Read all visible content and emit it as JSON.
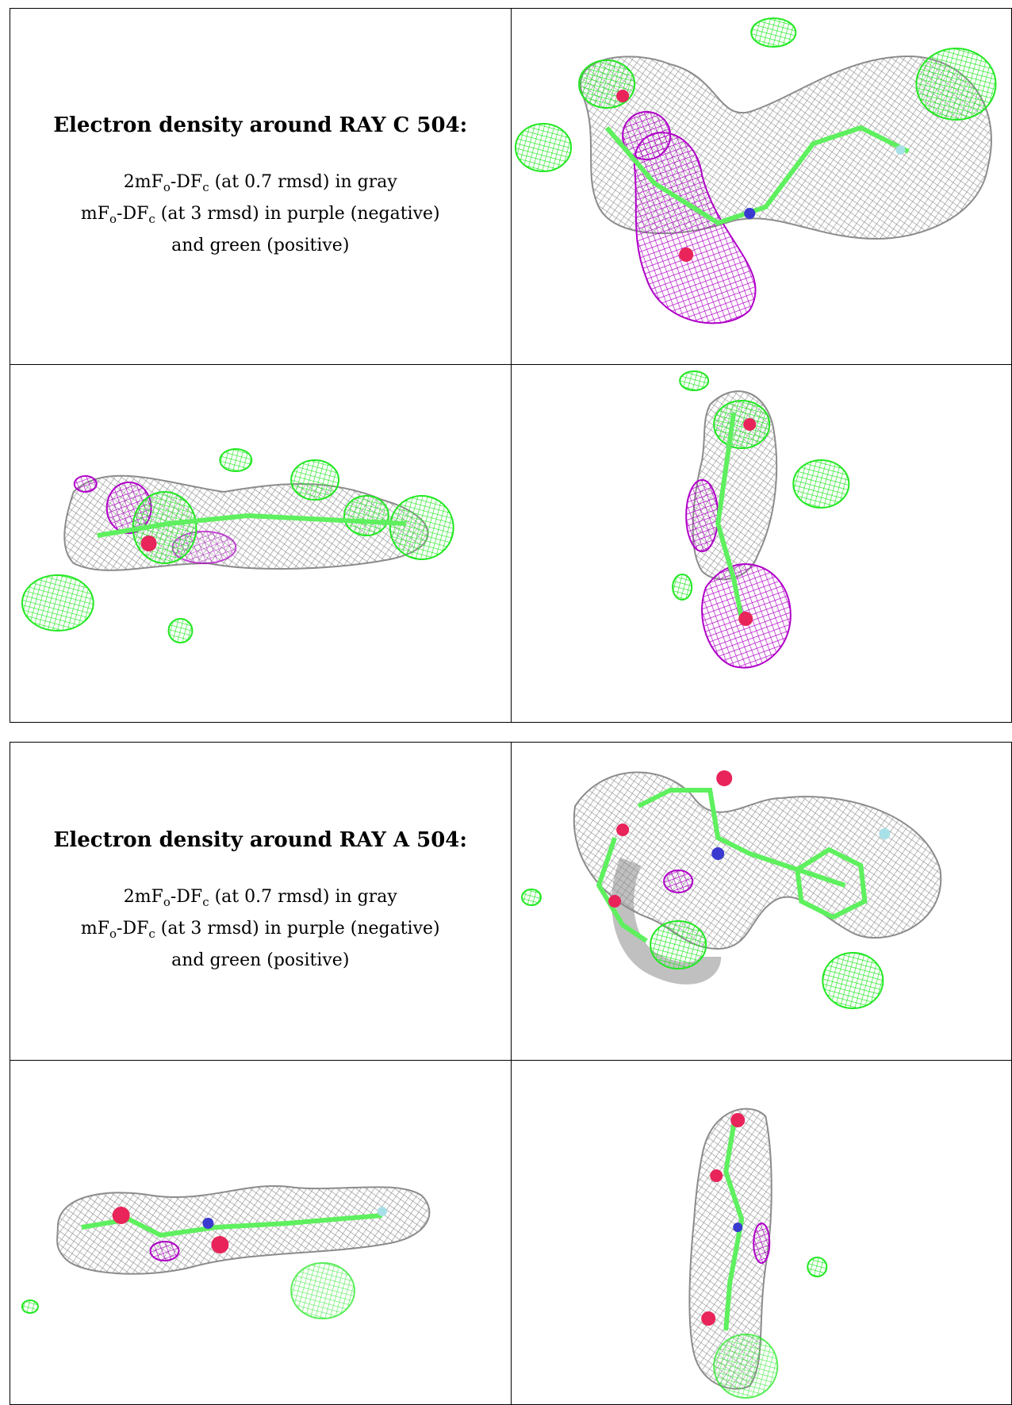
{
  "panels": [
    {
      "heading": "Electron density around RAY C 504:",
      "line1": {
        "pre": "2mF",
        "s1": "o",
        "mid": "-DF",
        "s2": "c",
        "post": " (at 0.7 rmsd) in gray"
      },
      "line2": {
        "pre": "mF",
        "s1": "o",
        "mid": "-DF",
        "s2": "c",
        "post": " (at 3 rmsd) in purple (negative)"
      },
      "line3": "and green (positive)"
    },
    {
      "heading": "Electron density around RAY A 504:",
      "line1": {
        "pre": "2mF",
        "s1": "o",
        "mid": "-DF",
        "s2": "c",
        "post": " (at 0.7 rmsd) in gray"
      },
      "line2": {
        "pre": "mF",
        "s1": "o",
        "mid": "-DF",
        "s2": "c",
        "post": " (at 3 rmsd) in purple (negative)"
      },
      "line3": "and green (positive)"
    }
  ],
  "colors": {
    "map_2fo_fc": "#8c8c8c",
    "map_fo_fc_negative": "#b000c8",
    "map_fo_fc_positive": "#22e822",
    "carbon": "#5ef05e",
    "oxygen": "#e8245a",
    "nitrogen": "#3a3ad0",
    "fluorine": "#a8e0e8"
  }
}
